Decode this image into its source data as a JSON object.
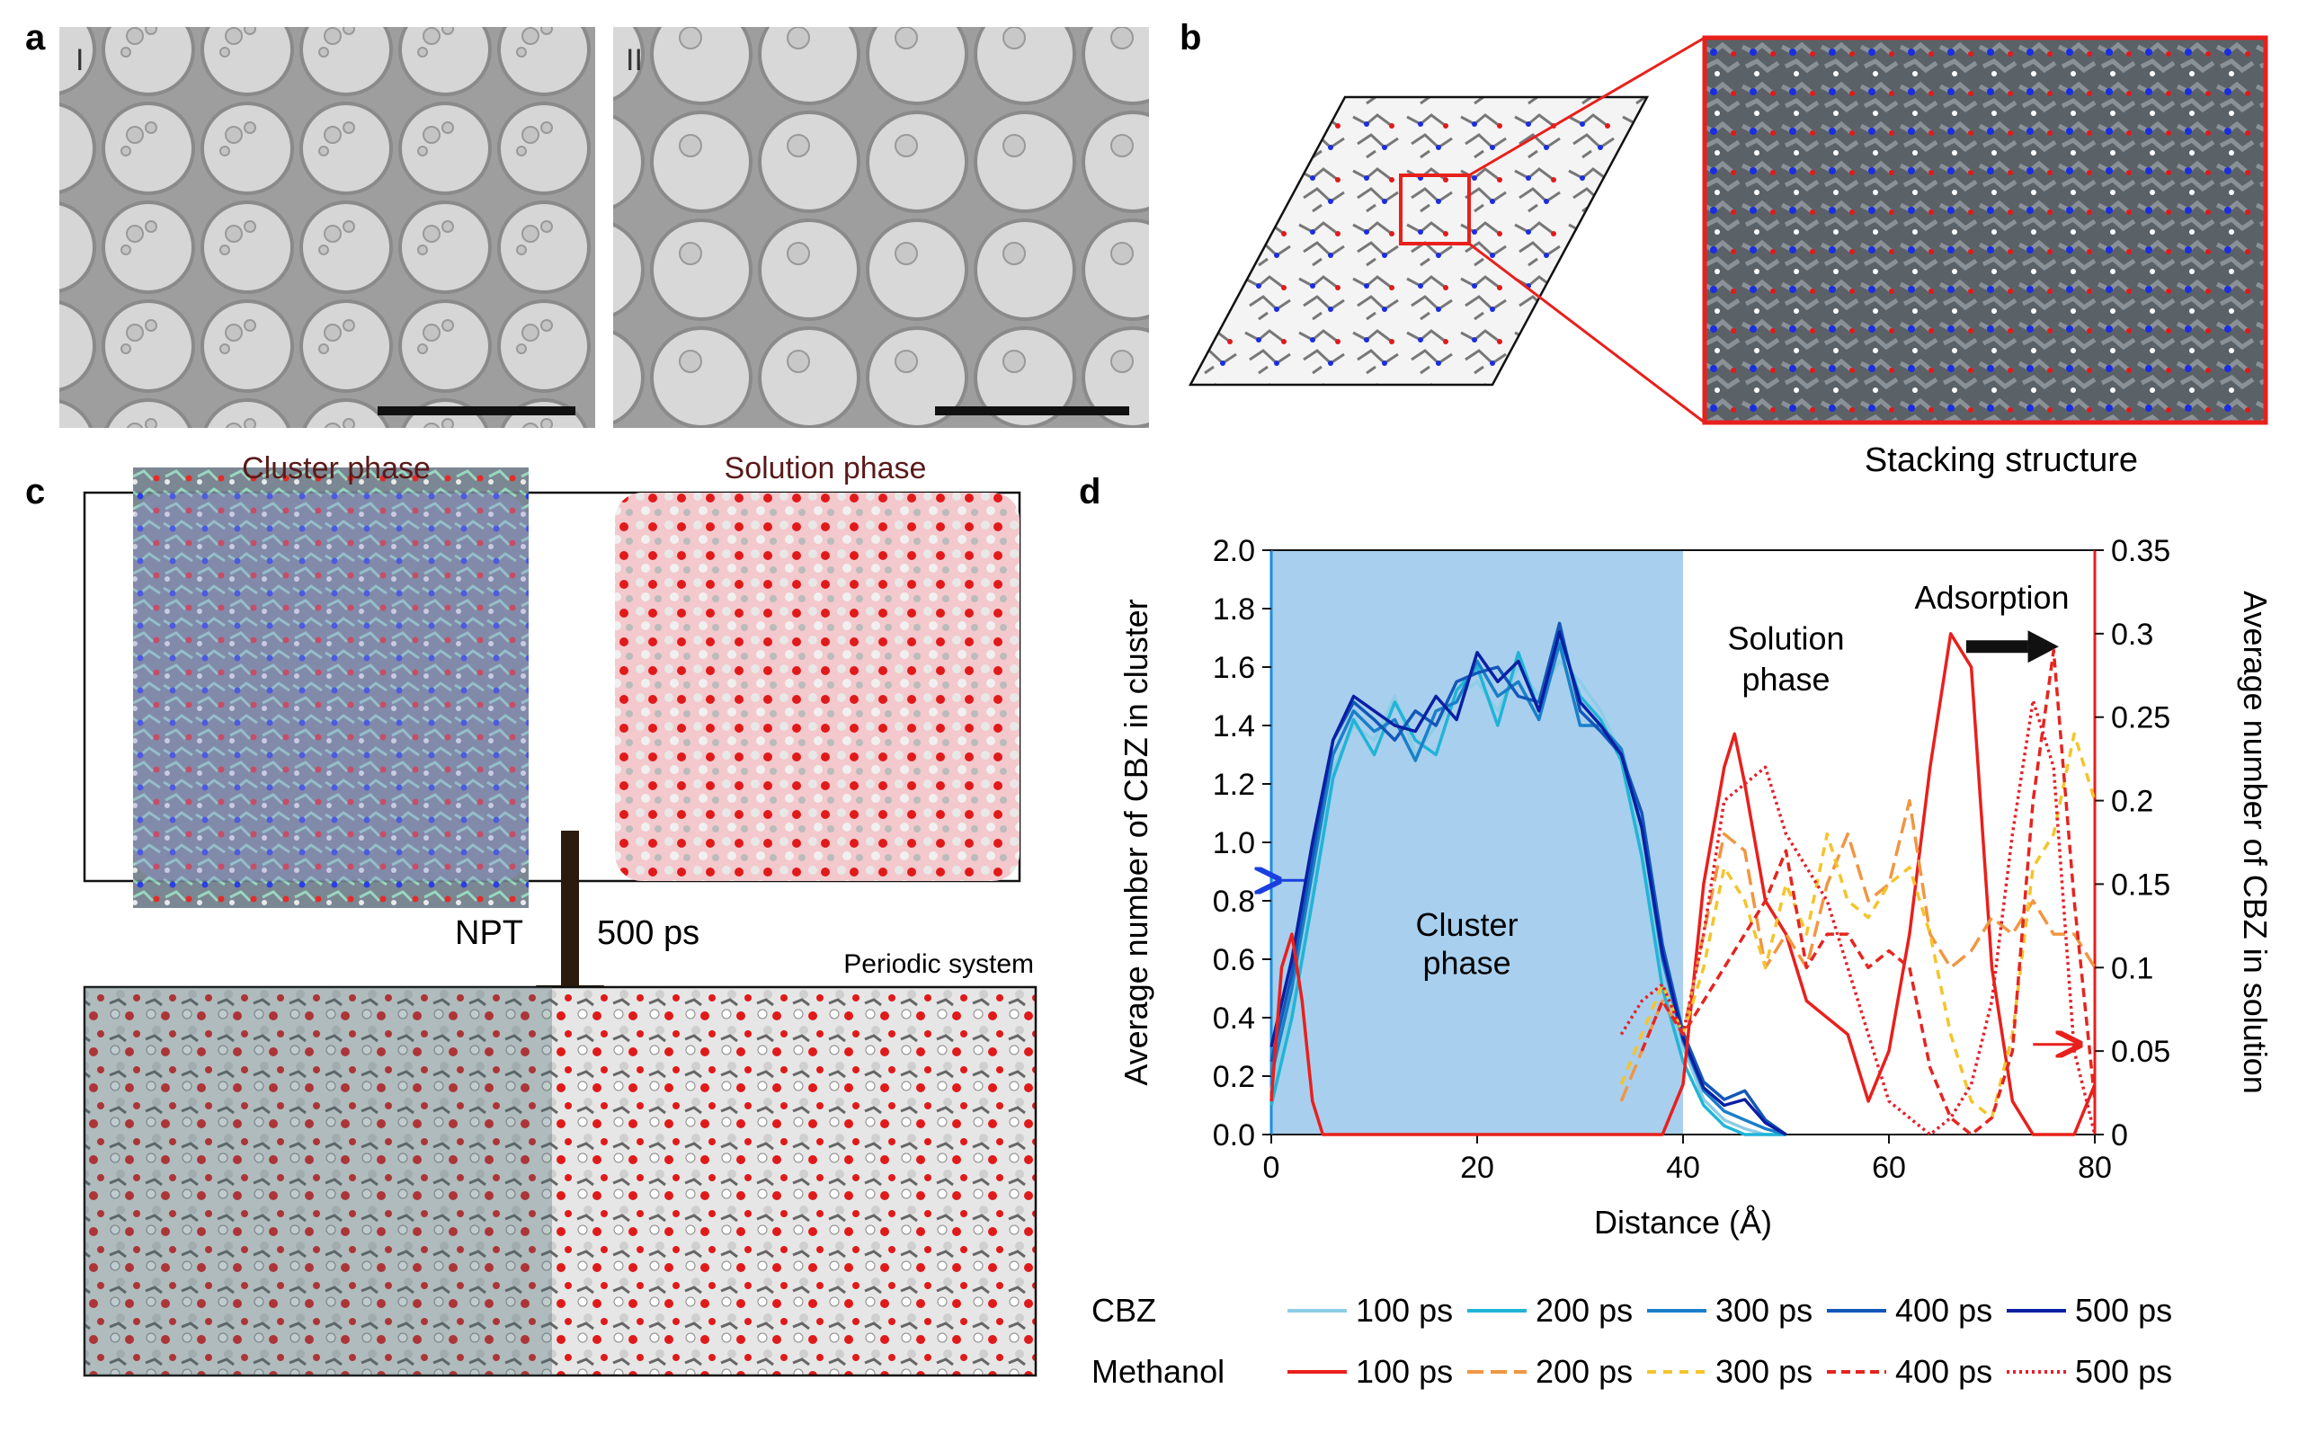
{
  "panels": {
    "a": {
      "label": "a",
      "sub_left": "I",
      "sub_right": "II"
    },
    "b": {
      "label": "b",
      "caption": "Stacking structure"
    },
    "c": {
      "label": "c",
      "cluster_title": "Cluster phase",
      "solution_title": "Solution phase",
      "arrow_left": "NPT",
      "arrow_right": "500 ps",
      "periodic": "Periodic system"
    },
    "d": {
      "label": "d"
    }
  },
  "colors": {
    "cbz": [
      "#8ecde6",
      "#21b4d6",
      "#1a7fc8",
      "#1357b8",
      "#0a1fa3"
    ],
    "methanol": [
      "#e8201c",
      "#f19642",
      "#f5c42a",
      "#e52520",
      "#e5202a"
    ],
    "cluster_fill": "#a8cfee",
    "red_axis": "#e8201c",
    "blue_axis": "#1a8fe0"
  },
  "chart_data": {
    "type": "line",
    "xlabel": "Distance (Å)",
    "ylabel": "Average number of CBZ in cluster",
    "y2label": "Average number of CBZ in solution",
    "xlim": [
      0,
      80
    ],
    "ylim": [
      0,
      2.0
    ],
    "y2lim": [
      0,
      0.35
    ],
    "xticks": [
      "0",
      "20",
      "40",
      "60",
      "80"
    ],
    "yticks": [
      "0.0",
      "0.2",
      "0.4",
      "0.6",
      "0.8",
      "1.0",
      "1.2",
      "1.4",
      "1.6",
      "1.8",
      "2.0"
    ],
    "y2ticks": [
      "0",
      "0.05",
      "0.1",
      "0.15",
      "0.2",
      "0.25",
      "0.3",
      "0.35"
    ],
    "annotations": {
      "cluster": [
        "Cluster",
        "phase"
      ],
      "solution": [
        "Solution",
        "phase"
      ],
      "adsorption": "Adsorption"
    },
    "cluster_region": [
      0,
      40
    ],
    "legend": {
      "cbz_title": "CBZ",
      "methanol_title": "Methanol",
      "labels": [
        "100 ps",
        "200 ps",
        "300 ps",
        "400 ps",
        "500 ps"
      ]
    },
    "series_cbz": [
      {
        "name": "100 ps",
        "x": [
          0,
          2,
          4,
          6,
          8,
          10,
          12,
          14,
          16,
          18,
          20,
          22,
          24,
          26,
          28,
          30,
          32,
          34,
          36,
          38,
          40,
          42,
          44,
          46,
          48,
          50
        ],
        "y": [
          0.15,
          0.45,
          0.85,
          1.25,
          1.4,
          1.35,
          1.5,
          1.3,
          1.4,
          1.5,
          1.55,
          1.45,
          1.6,
          1.5,
          1.62,
          1.55,
          1.45,
          1.3,
          1.0,
          0.55,
          0.3,
          0.12,
          0.05,
          0.02,
          0.0,
          0.0
        ]
      },
      {
        "name": "200 ps",
        "x": [
          0,
          2,
          4,
          6,
          8,
          10,
          12,
          14,
          16,
          18,
          20,
          22,
          24,
          26,
          28,
          30,
          32,
          34,
          36,
          38,
          40,
          42,
          44,
          46,
          48,
          50
        ],
        "y": [
          0.1,
          0.4,
          0.8,
          1.22,
          1.42,
          1.3,
          1.48,
          1.35,
          1.3,
          1.52,
          1.6,
          1.4,
          1.65,
          1.45,
          1.7,
          1.5,
          1.42,
          1.28,
          0.95,
          0.5,
          0.25,
          0.1,
          0.03,
          0.0,
          0.0,
          0.0
        ]
      },
      {
        "name": "300 ps",
        "x": [
          0,
          2,
          4,
          6,
          8,
          10,
          12,
          14,
          16,
          18,
          20,
          22,
          24,
          26,
          28,
          30,
          32,
          34,
          36,
          38,
          40,
          42,
          44,
          46,
          48,
          50
        ],
        "y": [
          0.2,
          0.5,
          0.9,
          1.3,
          1.45,
          1.38,
          1.42,
          1.28,
          1.45,
          1.48,
          1.62,
          1.5,
          1.55,
          1.42,
          1.68,
          1.4,
          1.4,
          1.32,
          1.05,
          0.6,
          0.32,
          0.15,
          0.08,
          0.05,
          0.02,
          0.0
        ]
      },
      {
        "name": "400 ps",
        "x": [
          0,
          2,
          4,
          6,
          8,
          10,
          12,
          14,
          16,
          18,
          20,
          22,
          24,
          26,
          28,
          30,
          32,
          34,
          36,
          38,
          40,
          42,
          44,
          46,
          48,
          50
        ],
        "y": [
          0.25,
          0.55,
          0.95,
          1.35,
          1.48,
          1.42,
          1.35,
          1.45,
          1.4,
          1.55,
          1.58,
          1.6,
          1.5,
          1.48,
          1.75,
          1.45,
          1.38,
          1.3,
          1.1,
          0.65,
          0.35,
          0.18,
          0.12,
          0.15,
          0.05,
          0.0
        ]
      },
      {
        "name": "500 ps",
        "x": [
          0,
          2,
          4,
          6,
          8,
          10,
          12,
          14,
          16,
          18,
          20,
          22,
          24,
          26,
          28,
          30,
          32,
          34,
          36,
          38,
          40,
          42,
          44,
          46,
          48,
          50
        ],
        "y": [
          0.3,
          0.6,
          1.0,
          1.35,
          1.5,
          1.45,
          1.4,
          1.38,
          1.5,
          1.42,
          1.65,
          1.55,
          1.62,
          1.45,
          1.72,
          1.48,
          1.4,
          1.3,
          1.05,
          0.62,
          0.33,
          0.16,
          0.1,
          0.12,
          0.04,
          0.0
        ]
      }
    ],
    "series_methanol": [
      {
        "name": "100 ps",
        "x": [
          0,
          1,
          2,
          3,
          4,
          5,
          6,
          38,
          40,
          42,
          44,
          45,
          46,
          48,
          50,
          52,
          54,
          56,
          58,
          60,
          62,
          64,
          66,
          68,
          70,
          72,
          74,
          76,
          78,
          80
        ],
        "y": [
          0.02,
          0.1,
          0.12,
          0.08,
          0.02,
          0.0,
          0.0,
          0.0,
          0.03,
          0.15,
          0.22,
          0.24,
          0.21,
          0.14,
          0.12,
          0.08,
          0.07,
          0.06,
          0.02,
          0.05,
          0.12,
          0.22,
          0.3,
          0.28,
          0.1,
          0.02,
          0.0,
          0.0,
          0.0,
          0.03
        ]
      },
      {
        "name": "200 ps",
        "x": [
          34,
          36,
          38,
          40,
          42,
          44,
          46,
          48,
          50,
          52,
          54,
          56,
          58,
          60,
          62,
          64,
          66,
          68,
          70,
          72,
          74,
          76,
          78,
          80
        ],
        "y": [
          0.02,
          0.05,
          0.08,
          0.06,
          0.12,
          0.18,
          0.17,
          0.1,
          0.12,
          0.1,
          0.15,
          0.18,
          0.14,
          0.15,
          0.2,
          0.12,
          0.1,
          0.11,
          0.13,
          0.12,
          0.14,
          0.12,
          0.12,
          0.1
        ]
      },
      {
        "name": "300 ps",
        "x": [
          34,
          36,
          38,
          40,
          42,
          44,
          46,
          48,
          50,
          52,
          54,
          56,
          58,
          60,
          62,
          64,
          66,
          68,
          70,
          72,
          74,
          76,
          78,
          80
        ],
        "y": [
          0.03,
          0.06,
          0.09,
          0.06,
          0.1,
          0.16,
          0.14,
          0.1,
          0.15,
          0.12,
          0.18,
          0.14,
          0.13,
          0.15,
          0.16,
          0.12,
          0.06,
          0.02,
          0.01,
          0.06,
          0.16,
          0.18,
          0.24,
          0.2
        ]
      },
      {
        "name": "400 ps",
        "x": [
          36,
          38,
          40,
          42,
          44,
          46,
          48,
          50,
          52,
          54,
          56,
          58,
          60,
          62,
          64,
          66,
          68,
          70,
          72,
          74,
          76,
          78,
          80
        ],
        "y": [
          0.05,
          0.08,
          0.06,
          0.08,
          0.1,
          0.12,
          0.14,
          0.17,
          0.1,
          0.12,
          0.12,
          0.1,
          0.11,
          0.1,
          0.04,
          0.01,
          0.0,
          0.01,
          0.05,
          0.2,
          0.29,
          0.14,
          0.02
        ]
      },
      {
        "name": "500 ps",
        "x": [
          34,
          36,
          38,
          40,
          42,
          44,
          46,
          48,
          50,
          52,
          54,
          56,
          58,
          60,
          62,
          64,
          66,
          68,
          70,
          72,
          74,
          76,
          78,
          80
        ],
        "y": [
          0.06,
          0.08,
          0.09,
          0.06,
          0.12,
          0.2,
          0.21,
          0.22,
          0.18,
          0.16,
          0.14,
          0.1,
          0.06,
          0.02,
          0.01,
          0.0,
          0.01,
          0.03,
          0.08,
          0.18,
          0.26,
          0.22,
          0.05,
          0.0
        ]
      }
    ]
  }
}
